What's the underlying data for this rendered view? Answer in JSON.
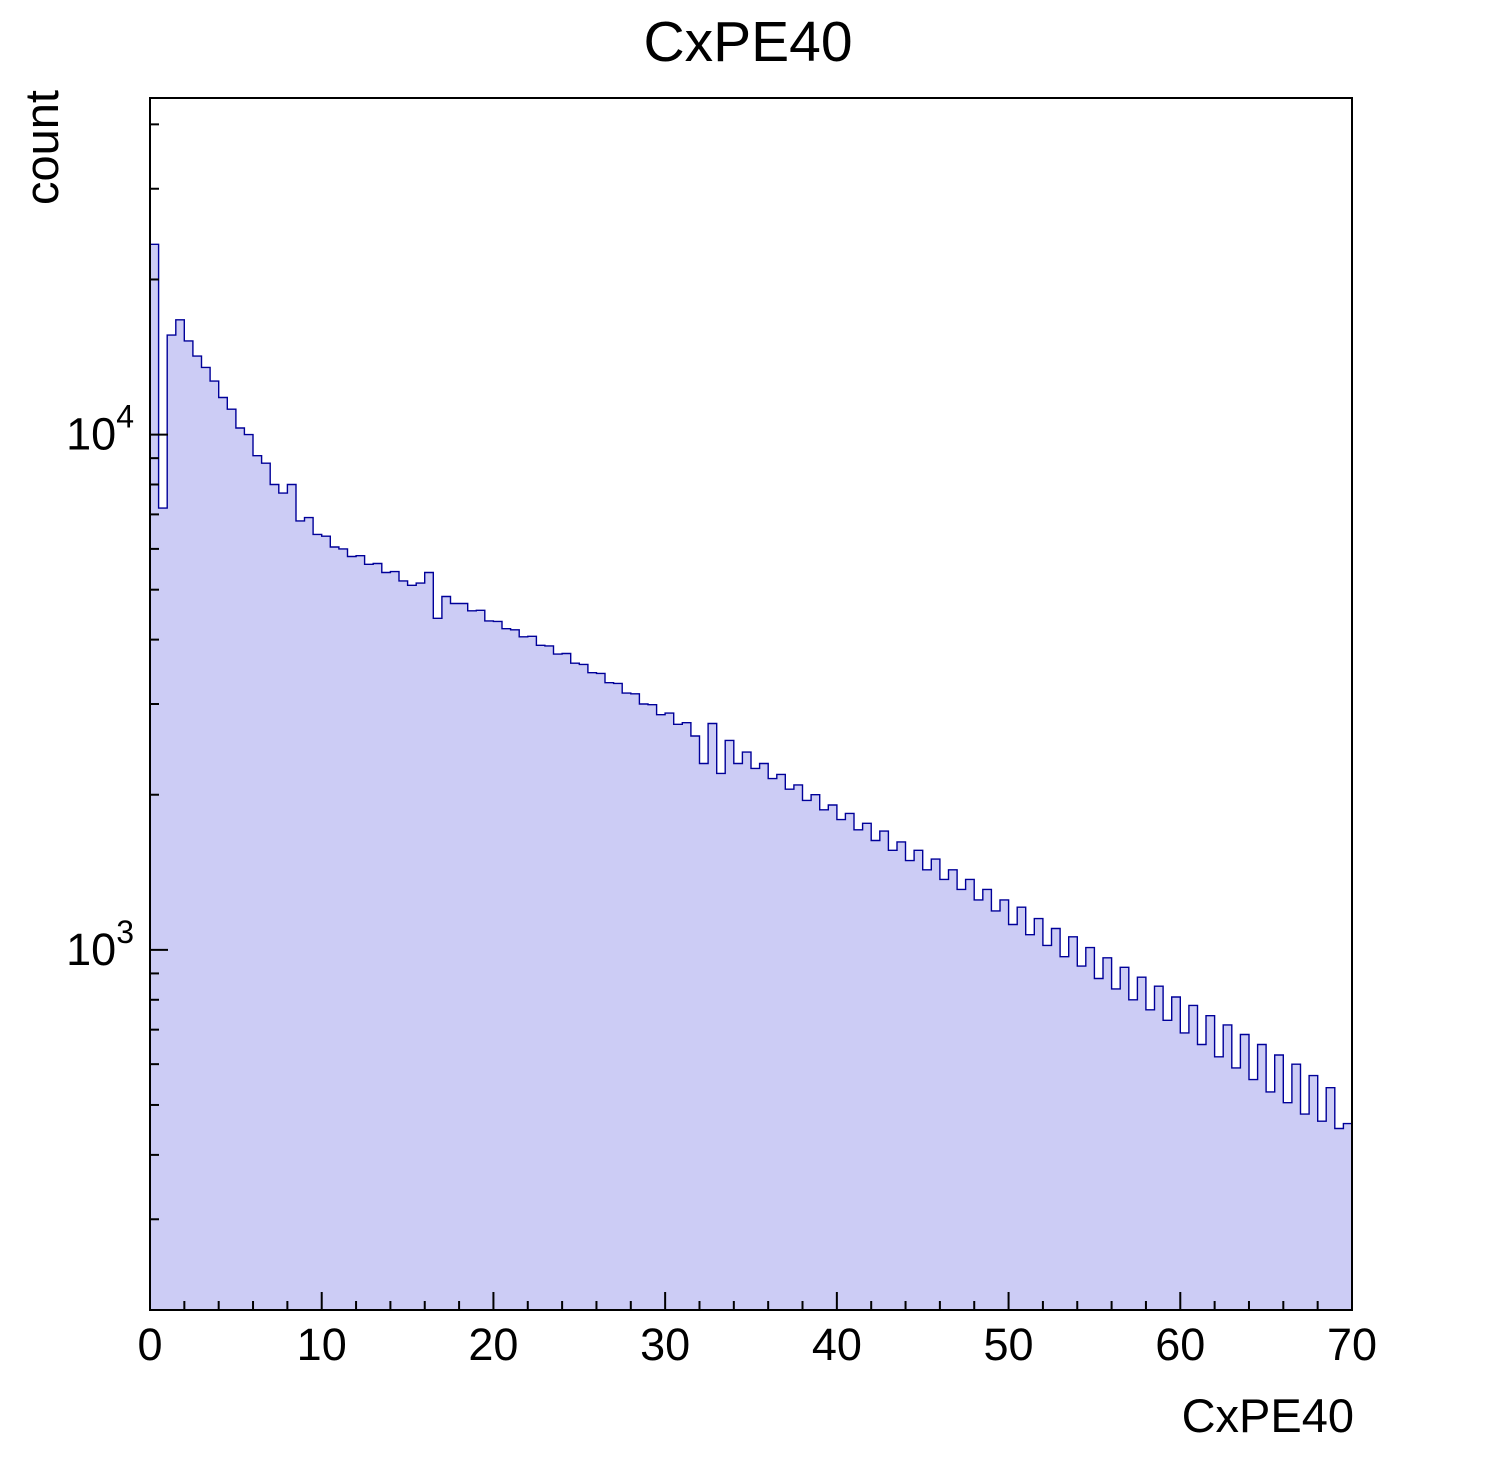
{
  "chart_data": {
    "type": "bar",
    "subtype": "step-histogram-log-y",
    "title": "CxPE40",
    "xlabel": "CxPE40",
    "ylabel": "count",
    "yscale": "log",
    "grid": false,
    "legend": null,
    "xlim": [
      0,
      70
    ],
    "ylim": [
      200,
      45000
    ],
    "x_major_ticks": [
      0,
      10,
      20,
      30,
      40,
      50,
      60,
      70
    ],
    "x_minor_step": 2,
    "y_major_ticks": [
      {
        "value": 1000,
        "base": "10",
        "exponent": "3"
      },
      {
        "value": 10000,
        "base": "10",
        "exponent": "4"
      }
    ],
    "y_minor_ticks": [
      300,
      400,
      500,
      600,
      700,
      800,
      900,
      2000,
      3000,
      4000,
      5000,
      6000,
      7000,
      8000,
      9000,
      20000,
      30000,
      40000
    ],
    "bin_start": 0,
    "bin_width": 0.5,
    "values": [
      23400,
      7200,
      15600,
      16700,
      15200,
      14200,
      13500,
      12700,
      11800,
      11200,
      10300,
      10000,
      9100,
      8800,
      8000,
      7700,
      8000,
      6800,
      6900,
      6400,
      6350,
      6050,
      6000,
      5800,
      5820,
      5600,
      5620,
      5400,
      5420,
      5200,
      5100,
      5150,
      5400,
      4400,
      4850,
      4700,
      4700,
      4550,
      4560,
      4350,
      4340,
      4200,
      4180,
      4050,
      4060,
      3900,
      3890,
      3750,
      3760,
      3600,
      3580,
      3450,
      3440,
      3300,
      3290,
      3150,
      3140,
      3000,
      2990,
      2860,
      2880,
      2740,
      2760,
      2600,
      2300,
      2750,
      2200,
      2550,
      2300,
      2420,
      2250,
      2300,
      2150,
      2190,
      2050,
      2090,
      1950,
      2000,
      1870,
      1910,
      1790,
      1840,
      1710,
      1760,
      1630,
      1700,
      1560,
      1620,
      1490,
      1560,
      1430,
      1500,
      1370,
      1430,
      1310,
      1370,
      1250,
      1310,
      1190,
      1250,
      1120,
      1210,
      1070,
      1150,
      1020,
      1100,
      970,
      1060,
      930,
      1010,
      880,
      965,
      840,
      925,
      800,
      885,
      765,
      850,
      730,
      810,
      690,
      780,
      655,
      745,
      620,
      715,
      590,
      685,
      560,
      655,
      530,
      625,
      505,
      600,
      480,
      570,
      465,
      540,
      450,
      460
    ],
    "fill_color": "#ccccf5",
    "line_color": "#000099",
    "axis_color": "#000000"
  }
}
